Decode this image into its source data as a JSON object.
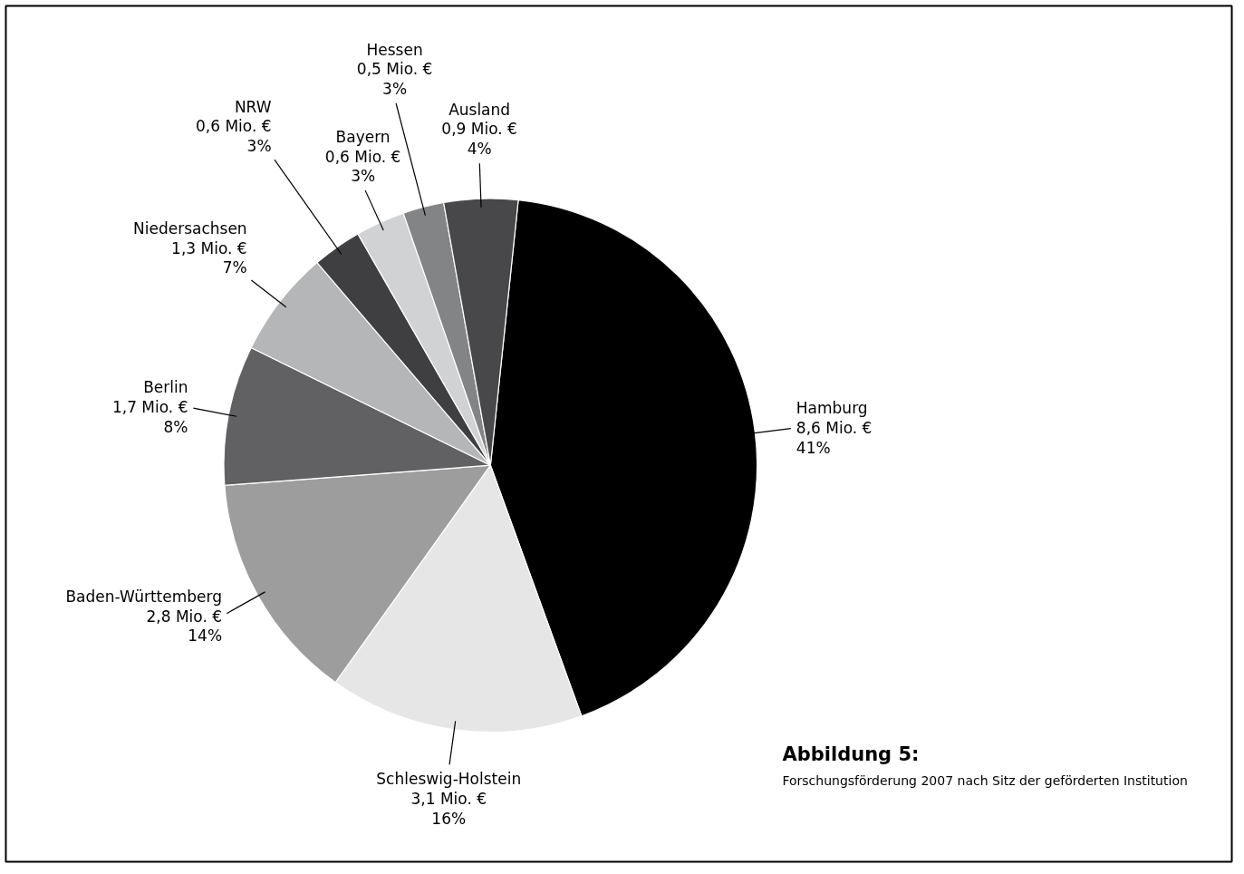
{
  "chart_data": {
    "type": "pie",
    "title": "Abbildung 5:",
    "subtitle": "Forschungsförderung 2007 nach Sitz der geförderten Institution",
    "categories": [
      "Hamburg",
      "Schleswig-Holstein",
      "Baden-Württemberg",
      "Berlin",
      "Niedersachsen",
      "NRW",
      "Bayern",
      "Hessen",
      "Ausland"
    ],
    "values": [
      8.6,
      3.1,
      2.8,
      1.7,
      1.3,
      0.6,
      0.6,
      0.5,
      0.9
    ],
    "colors": [
      "#000000",
      "#e6e6e6",
      "#9d9d9e",
      "#616163",
      "#b5b6b7",
      "#3f3f41",
      "#d1d2d3",
      "#838486",
      "#48484a"
    ],
    "value_labels": [
      "8,6 Mio. €\n41%",
      "3,1 Mio. €\n16%",
      "2,8 Mio. €\n14%",
      "1,7 Mio. €\n8%",
      "1,3 Mio. €\n7%",
      "0,6 Mio. €\n3%",
      "0,6 Mio. €\n3%",
      "0,5 Mio. €\n3%",
      "0,9 Mio. €\n4%"
    ]
  }
}
